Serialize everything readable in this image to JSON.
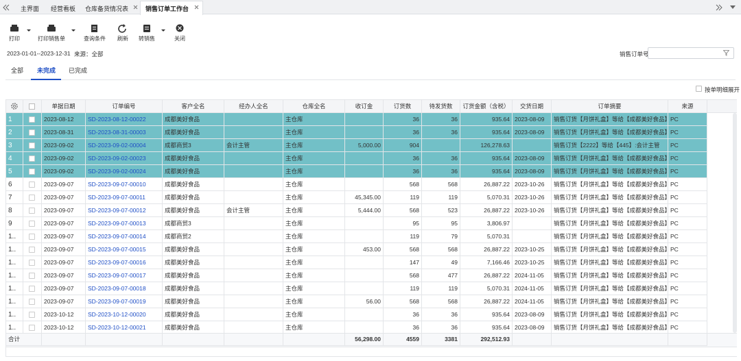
{
  "tabs": [
    "主界面",
    "经营看板",
    "仓库备货情况表",
    "销售订单工作台"
  ],
  "toolbar": [
    "打印",
    "打印销售单",
    "查询条件",
    "刷新",
    "转销售",
    "关闭"
  ],
  "filter": {
    "date_range": "2023-01-01--2023-12-31",
    "source": "来源：全部"
  },
  "search_label": "销售订单号",
  "sub_tabs": [
    "全部",
    "未完成",
    "已完成"
  ],
  "expand_option": "按单明细展开",
  "table": {
    "columns": [
      "单据日期",
      "订单编号",
      "客户全名",
      "经办人全名",
      "仓库全名",
      "收订金",
      "订货数",
      "待发货数",
      "订货金额（含税）",
      "交货日期",
      "订单摘要",
      "来源"
    ],
    "rows": [
      [
        "1",
        "2023-08-12",
        "SD-2023-08-12-00022",
        "成都美好食品",
        null,
        "主仓库",
        null,
        "36",
        "36",
        "935.64",
        "2023-08-09",
        "销售订货【月饼礼盒】等给【成都美好食品】：",
        "PC"
      ],
      [
        "2",
        "2023-08-31",
        "SD-2023-08-31-00003",
        "成都美好食品",
        null,
        "主仓库",
        null,
        "36",
        "36",
        "935.64",
        "2023-08-09",
        "销售订货【月饼礼盒】等给【成都美好食品】：",
        "PC"
      ],
      [
        "3",
        "2023-09-02",
        "SD-2023-09-02-00004",
        "成都商贸3",
        "会计主管",
        "主仓库",
        "5,000.00",
        "904",
        null,
        "126,278.63",
        null,
        "销售订货【2222】等给【445】:会计主管",
        "PC"
      ],
      [
        "4",
        "2023-09-02",
        "SD-2023-09-02-00023",
        "成都美好食品",
        null,
        "主仓库",
        null,
        "36",
        "36",
        "935.64",
        "2023-08-09",
        "销售订货【月饼礼盒】等给【成都美好食品】：",
        "PC"
      ],
      [
        "5",
        "2023-09-02",
        "SD-2023-09-02-00024",
        "成都美好食品",
        null,
        "主仓库",
        null,
        "36",
        "36",
        "935.64",
        "2023-08-09",
        "销售订货【月饼礼盒】等给【成都美好食品】：",
        "PC"
      ],
      [
        "6",
        "2023-09-07",
        "SD-2023-09-07-00010",
        "成都美好食品",
        null,
        "主仓库",
        null,
        "568",
        "568",
        "26,887.22",
        "2023-10-26",
        "销售订货【月饼礼盒】等给【成都美好食品】：",
        "PC"
      ],
      [
        "7",
        "2023-09-07",
        "SD-2023-09-07-00011",
        "成都美好食品",
        null,
        "主仓库",
        "45,345.00",
        "119",
        "119",
        "5,070.31",
        "2023-10-26",
        "销售订货【月饼礼盒】等给【成都美好食品】：",
        "PC"
      ],
      [
        "8",
        "2023-09-07",
        "SD-2023-09-07-00012",
        "成都美好食品",
        "会计主管",
        "主仓库",
        "5,444.00",
        "568",
        "523",
        "26,887.22",
        "2023-10-26",
        "销售订货【月饼礼盒】等给【成都美好食品】：",
        "PC"
      ],
      [
        "9",
        "2023-09-07",
        "SD-2023-09-07-00013",
        "成都商贸3",
        null,
        "主仓库",
        null,
        "95",
        "95",
        "3,806.97",
        null,
        "销售订货【月饼礼盒】等给【成都美好食品】：",
        "PC"
      ],
      [
        "1..",
        "2023-09-07",
        "SD-2023-09-07-00014",
        "成都商贸2",
        null,
        "主仓库",
        null,
        "119",
        "79",
        "5,070.31",
        null,
        "销售订货【月饼礼盒】等给【成都美好食品】：",
        "PC"
      ],
      [
        "1..",
        "2023-09-07",
        "SD-2023-09-07-00015",
        "成都美好食品",
        null,
        "主仓库",
        "453.00",
        "568",
        "568",
        "26,887.22",
        "2023-10-25",
        "销售订货【月饼礼盒】等给【成都美好食品】：",
        "PC"
      ],
      [
        "1..",
        "2023-09-07",
        "SD-2023-09-07-00016",
        "成都美好食品",
        null,
        "主仓库",
        null,
        "147",
        "49",
        "7,166.46",
        "2023-10-25",
        "销售订货【月饼礼盒】等给【成都美好食品】：",
        "PC"
      ],
      [
        "1..",
        "2023-09-07",
        "SD-2023-09-07-00017",
        "成都美好食品",
        null,
        "主仓库",
        null,
        "568",
        "477",
        "26,887.22",
        "2024-11-05",
        "销售订货【月饼礼盒】等给【成都美好食品】：",
        "PC"
      ],
      [
        "1..",
        "2023-09-07",
        "SD-2023-09-07-00018",
        "成都美好食品",
        null,
        "主仓库",
        null,
        "119",
        "119",
        "5,070.31",
        "2024-11-05",
        "销售订货【月饼礼盒】等给【成都美好食品】：",
        "PC"
      ],
      [
        "1..",
        "2023-09-07",
        "SD-2023-09-07-00019",
        "成都美好食品",
        null,
        "主仓库",
        "56.00",
        "568",
        "568",
        "26,887.22",
        "2024-11-05",
        "销售订货【月饼礼盒】等给【成都美好食品】：",
        "PC"
      ],
      [
        "1..",
        "2023-10-12",
        "SD-2023-10-12-00020",
        "成都美好食品",
        null,
        "主仓库",
        null,
        "36",
        "36",
        "935.64",
        "2023-08-09",
        "销售订货【月饼礼盒】等给【成都美好食品】：",
        "PC"
      ],
      [
        "1..",
        "2023-10-12",
        "SD-2023-10-12-00021",
        "成都美好食品",
        null,
        "主仓库",
        null,
        "36",
        "36",
        "935.64",
        "2023-08-09",
        "销售订货【月饼礼盒】等给【成都美好食品】：",
        "PC"
      ]
    ],
    "selected_rows": 5,
    "total": {
      "label": "合计",
      "cells": [
        null,
        null,
        null,
        null,
        null,
        "56,298.00",
        "4559",
        "3381",
        "292,512.93",
        null,
        null,
        null
      ]
    }
  }
}
